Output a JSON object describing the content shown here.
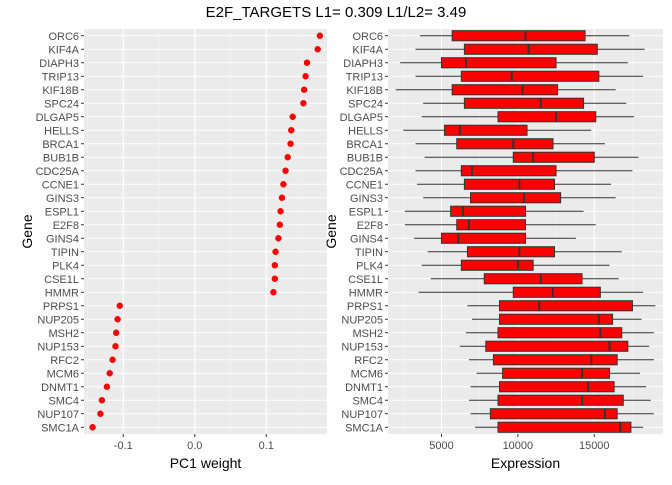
{
  "chart_title": "E2F_TARGETS L1= 0.309 L1/L2= 3.49",
  "colors": {
    "panel_bg": "#ebebeb",
    "grid_major": "#ffffff",
    "grid_minor": "#f3f3f3",
    "point": "#ff0000",
    "box_fill": "#ff0000",
    "box_line": "#333333",
    "tick_text": "#4d4d4d"
  },
  "chart_data": [
    {
      "type": "scatter",
      "title": "",
      "xlabel": "PC1 weight",
      "ylabel": "Gene",
      "xlim": [
        -0.155,
        0.185
      ],
      "x_ticks": [
        -0.1,
        0.0,
        0.1
      ],
      "x_tick_labels": [
        "-0.1",
        "0.0",
        "0.1"
      ],
      "grid": true,
      "genes": [
        "ORC6",
        "KIF4A",
        "DIAPH3",
        "TRIP13",
        "KIF18B",
        "SPC24",
        "DLGAP5",
        "HELLS",
        "BRCA1",
        "BUB1B",
        "CDC25A",
        "CCNE1",
        "GINS3",
        "ESPL1",
        "E2F8",
        "GINS4",
        "TIPIN",
        "PLK4",
        "CSE1L",
        "HMMR",
        "PRPS1",
        "NUP205",
        "MSH2",
        "NUP153",
        "RFC2",
        "MCM6",
        "DNMT1",
        "SMC4",
        "NUP107",
        "SMC1A"
      ],
      "values": [
        0.175,
        0.172,
        0.157,
        0.155,
        0.153,
        0.152,
        0.137,
        0.135,
        0.134,
        0.13,
        0.127,
        0.124,
        0.122,
        0.12,
        0.119,
        0.117,
        0.113,
        0.112,
        0.112,
        0.11,
        -0.105,
        -0.108,
        -0.11,
        -0.111,
        -0.115,
        -0.119,
        -0.123,
        -0.13,
        -0.132,
        -0.143
      ]
    },
    {
      "type": "box",
      "title": "",
      "xlabel": "Expression",
      "ylabel": "Gene",
      "xlim": [
        1500,
        19500
      ],
      "x_ticks": [
        5000,
        10000,
        15000
      ],
      "x_tick_labels": [
        "5000",
        "10000",
        "15000"
      ],
      "grid": true,
      "genes": [
        "ORC6",
        "KIF4A",
        "DIAPH3",
        "TRIP13",
        "KIF18B",
        "SPC24",
        "DLGAP5",
        "HELLS",
        "BRCA1",
        "BUB1B",
        "CDC25A",
        "CCNE1",
        "GINS3",
        "ESPL1",
        "E2F8",
        "GINS4",
        "TIPIN",
        "PLK4",
        "CSE1L",
        "HMMR",
        "PRPS1",
        "NUP205",
        "MSH2",
        "NUP153",
        "RFC2",
        "MCM6",
        "DNMT1",
        "SMC4",
        "NUP107",
        "SMC1A"
      ],
      "boxes": [
        {
          "gene": "ORC6",
          "min": 3600,
          "q1": 5700,
          "median": 10500,
          "q3": 14400,
          "max": 17300
        },
        {
          "gene": "KIF4A",
          "min": 3300,
          "q1": 6500,
          "median": 10700,
          "q3": 15200,
          "max": 18300
        },
        {
          "gene": "DIAPH3",
          "min": 2300,
          "q1": 5000,
          "median": 6600,
          "q3": 12500,
          "max": 17200
        },
        {
          "gene": "TRIP13",
          "min": 3300,
          "q1": 6300,
          "median": 9600,
          "q3": 15300,
          "max": 18200
        },
        {
          "gene": "KIF18B",
          "min": 2000,
          "q1": 5700,
          "median": 10300,
          "q3": 12600,
          "max": 16400
        },
        {
          "gene": "SPC24",
          "min": 3800,
          "q1": 6500,
          "median": 11500,
          "q3": 14300,
          "max": 17100
        },
        {
          "gene": "DLGAP5",
          "min": 3700,
          "q1": 8700,
          "median": 12500,
          "q3": 15100,
          "max": 17600
        },
        {
          "gene": "HELLS",
          "min": 2500,
          "q1": 5200,
          "median": 6200,
          "q3": 10600,
          "max": 14800
        },
        {
          "gene": "BRCA1",
          "min": 3300,
          "q1": 6000,
          "median": 9700,
          "q3": 12300,
          "max": 15700
        },
        {
          "gene": "BUB1B",
          "min": 3900,
          "q1": 9700,
          "median": 11000,
          "q3": 15000,
          "max": 17900
        },
        {
          "gene": "CDC25A",
          "min": 3300,
          "q1": 6300,
          "median": 7000,
          "q3": 12500,
          "max": 17500
        },
        {
          "gene": "CCNE1",
          "min": 3400,
          "q1": 6500,
          "median": 10100,
          "q3": 12400,
          "max": 16100
        },
        {
          "gene": "GINS3",
          "min": 3800,
          "q1": 6900,
          "median": 10400,
          "q3": 12800,
          "max": 16400
        },
        {
          "gene": "ESPL1",
          "min": 2600,
          "q1": 5600,
          "median": 6400,
          "q3": 10500,
          "max": 14300
        },
        {
          "gene": "E2F8",
          "min": 2600,
          "q1": 6000,
          "median": 6800,
          "q3": 10500,
          "max": 15100
        },
        {
          "gene": "GINS4",
          "min": 3200,
          "q1": 5000,
          "median": 6100,
          "q3": 10500,
          "max": 13800
        },
        {
          "gene": "TIPIN",
          "min": 4100,
          "q1": 6700,
          "median": 10100,
          "q3": 12400,
          "max": 16800
        },
        {
          "gene": "PLK4",
          "min": 3700,
          "q1": 6300,
          "median": 10000,
          "q3": 11000,
          "max": 16000
        },
        {
          "gene": "CSE1L",
          "min": 4300,
          "q1": 7800,
          "median": 11500,
          "q3": 14200,
          "max": 16600
        },
        {
          "gene": "HMMR",
          "min": 3500,
          "q1": 9700,
          "median": 12300,
          "q3": 15400,
          "max": 18200
        },
        {
          "gene": "PRPS1",
          "min": 6700,
          "q1": 8800,
          "median": 11400,
          "q3": 17500,
          "max": 19000
        },
        {
          "gene": "NUP205",
          "min": 7000,
          "q1": 8800,
          "median": 15300,
          "q3": 16200,
          "max": 18100
        },
        {
          "gene": "MSH2",
          "min": 6600,
          "q1": 8700,
          "median": 15400,
          "q3": 16800,
          "max": 18900
        },
        {
          "gene": "NUP153",
          "min": 6200,
          "q1": 7900,
          "median": 16000,
          "q3": 17200,
          "max": 18600
        },
        {
          "gene": "RFC2",
          "min": 6800,
          "q1": 8400,
          "median": 14800,
          "q3": 16500,
          "max": 18900
        },
        {
          "gene": "MCM6",
          "min": 7300,
          "q1": 9000,
          "median": 14200,
          "q3": 16000,
          "max": 18000
        },
        {
          "gene": "DNMT1",
          "min": 6900,
          "q1": 8800,
          "median": 14600,
          "q3": 16300,
          "max": 18400
        },
        {
          "gene": "SMC4",
          "min": 6800,
          "q1": 8700,
          "median": 14200,
          "q3": 16900,
          "max": 18700
        },
        {
          "gene": "NUP107",
          "min": 6900,
          "q1": 8200,
          "median": 15700,
          "q3": 16500,
          "max": 18900
        },
        {
          "gene": "SMC1A",
          "min": 7200,
          "q1": 8700,
          "median": 16700,
          "q3": 17400,
          "max": 18200
        }
      ]
    }
  ]
}
